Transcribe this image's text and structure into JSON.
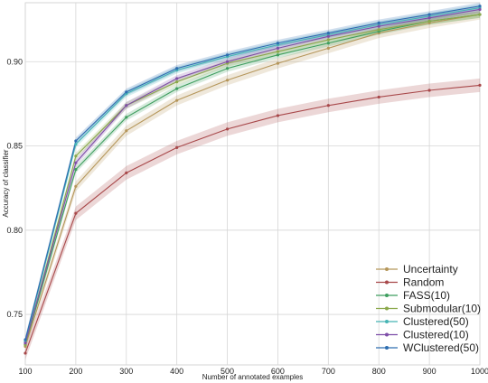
{
  "chart_data": {
    "type": "line",
    "title": "",
    "xlabel": "Number of annotated examples",
    "ylabel": "Accuracy of classifier",
    "x": [
      100,
      200,
      300,
      400,
      500,
      600,
      700,
      800,
      900,
      1000
    ],
    "xlim": [
      100,
      1000
    ],
    "ylim": [
      0.72,
      0.935
    ],
    "xticks": [
      "100",
      "200",
      "300",
      "400",
      "500",
      "600",
      "700",
      "800",
      "900",
      "1000"
    ],
    "yticks": [
      "0.75",
      "0.80",
      "0.85",
      "0.90"
    ],
    "ytick_values": [
      0.75,
      0.8,
      0.85,
      0.9
    ],
    "grid": true,
    "legend_position": "bottom-right",
    "series": [
      {
        "name": "Uncertainty",
        "color": "#b5965a",
        "band": 0.003,
        "values": [
          0.731,
          0.826,
          0.859,
          0.877,
          0.889,
          0.899,
          0.908,
          0.917,
          0.923,
          0.928
        ]
      },
      {
        "name": "Random",
        "color": "#a8484a",
        "band": 0.004,
        "values": [
          0.727,
          0.81,
          0.834,
          0.849,
          0.86,
          0.868,
          0.874,
          0.879,
          0.883,
          0.886
        ]
      },
      {
        "name": "FASS(10)",
        "color": "#3f9e5f",
        "band": 0.002,
        "values": [
          0.732,
          0.836,
          0.867,
          0.884,
          0.896,
          0.904,
          0.911,
          0.918,
          0.924,
          0.928
        ]
      },
      {
        "name": "Submodular(10)",
        "color": "#8aa84a",
        "band": 0.002,
        "values": [
          0.732,
          0.844,
          0.874,
          0.888,
          0.899,
          0.906,
          0.913,
          0.919,
          0.924,
          0.928
        ]
      },
      {
        "name": "Clustered(50)",
        "color": "#46b4b4",
        "band": 0.002,
        "values": [
          0.734,
          0.851,
          0.881,
          0.895,
          0.903,
          0.91,
          0.916,
          0.922,
          0.927,
          0.932
        ]
      },
      {
        "name": "Clustered(10)",
        "color": "#7e4ea8",
        "band": 0.002,
        "values": [
          0.733,
          0.84,
          0.874,
          0.89,
          0.9,
          0.908,
          0.915,
          0.921,
          0.926,
          0.931
        ]
      },
      {
        "name": "WClustered(50)",
        "color": "#2d6db0",
        "band": 0.002,
        "values": [
          0.735,
          0.853,
          0.882,
          0.896,
          0.904,
          0.911,
          0.917,
          0.923,
          0.928,
          0.933
        ]
      }
    ]
  }
}
